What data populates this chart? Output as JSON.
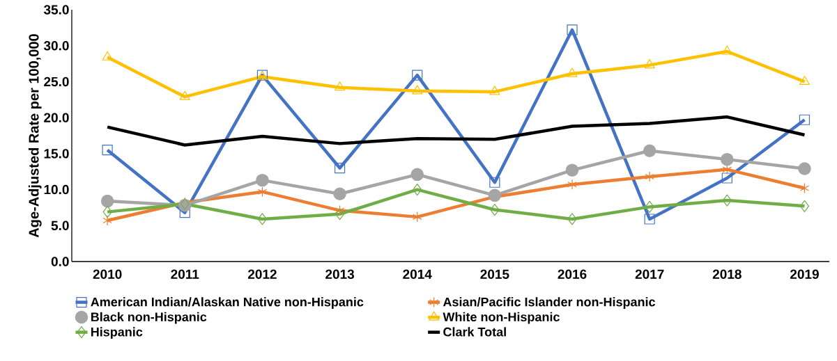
{
  "chart_data": {
    "type": "line",
    "ylabel": "Age-Adjusted Rate per 100,000",
    "categories": [
      "2010",
      "2011",
      "2012",
      "2013",
      "2014",
      "2015",
      "2016",
      "2017",
      "2018",
      "2019"
    ],
    "ylim": [
      0,
      35
    ],
    "yticks": [
      {
        "value": 0,
        "label": "0.0"
      },
      {
        "value": 5,
        "label": "5.0"
      },
      {
        "value": 10,
        "label": "10.0"
      },
      {
        "value": 15,
        "label": "15.0"
      },
      {
        "value": 20,
        "label": "20.0"
      },
      {
        "value": 25,
        "label": "25.0"
      },
      {
        "value": 30,
        "label": "30.0"
      },
      {
        "value": 35,
        "label": "35.0"
      }
    ],
    "grid": false,
    "legend": "bottom",
    "series": [
      {
        "name": "American Indian/Alaskan Native non-Hispanic",
        "color": "#4472c4",
        "marker": "square",
        "values": [
          15.5,
          6.8,
          25.9,
          13.0,
          25.9,
          11.0,
          32.2,
          5.9,
          11.6,
          19.7
        ]
      },
      {
        "name": "Asian/Pacific Islander non-Hispanic",
        "color": "#ed7d31",
        "marker": "cross",
        "values": [
          5.7,
          8.2,
          9.7,
          7.1,
          6.2,
          9.0,
          10.7,
          11.8,
          12.8,
          10.2
        ]
      },
      {
        "name": "Black non-Hispanic",
        "color": "#a5a5a5",
        "marker": "circle",
        "values": [
          8.4,
          7.8,
          11.3,
          9.4,
          12.1,
          9.2,
          12.7,
          15.4,
          14.2,
          12.9
        ]
      },
      {
        "name": "White non-Hispanic",
        "color": "#ffc000",
        "marker": "triangle",
        "values": [
          28.4,
          22.9,
          25.7,
          24.2,
          23.7,
          23.6,
          26.1,
          27.3,
          29.2,
          25.0
        ]
      },
      {
        "name": "Hispanic",
        "color": "#70ad47",
        "marker": "diamond",
        "values": [
          6.9,
          8.0,
          5.9,
          6.6,
          10.0,
          7.2,
          5.9,
          7.6,
          8.5,
          7.7
        ]
      },
      {
        "name": "Clark Total",
        "color": "#000000",
        "marker": "none",
        "values": [
          18.7,
          16.2,
          17.4,
          16.4,
          17.1,
          17.0,
          18.8,
          19.2,
          20.1,
          17.6
        ]
      }
    ]
  }
}
